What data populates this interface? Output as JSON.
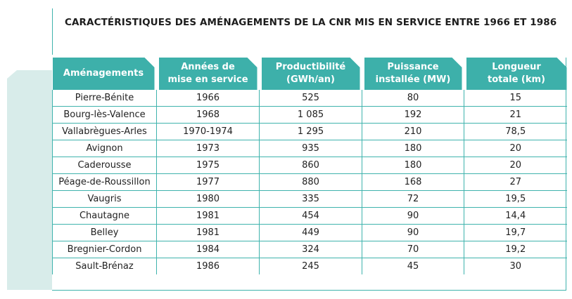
{
  "title": "CARACTÉRISTIQUES DES AMÉNAGEMENTS DE LA CNR MIS EN SERVICE ENTRE 1966 ET 1986",
  "colors": {
    "accent": "#3db0aa",
    "side_panel": "#d8ecea",
    "rule": "#3fb3ad"
  },
  "table": {
    "headers": [
      "Aménagements",
      "Années de\nmise en service",
      "Productibilité\n(GWh/an)",
      "Puissance\ninstallée (MW)",
      "Longueur\ntotale (km)"
    ],
    "rows": [
      [
        "Pierre-Bénite",
        "1966",
        "525",
        "80",
        "15"
      ],
      [
        "Bourg-lès-Valence",
        "1968",
        "1 085",
        "192",
        "21"
      ],
      [
        "Vallabrègues-Arles",
        "1970-1974",
        "1 295",
        "210",
        "78,5"
      ],
      [
        "Avignon",
        "1973",
        "935",
        "180",
        "20"
      ],
      [
        "Caderousse",
        "1975",
        "860",
        "180",
        "20"
      ],
      [
        "Péage-de-Roussillon",
        "1977",
        "880",
        "168",
        "27"
      ],
      [
        "Vaugris",
        "1980",
        "335",
        "72",
        "19,5"
      ],
      [
        "Chautagne",
        "1981",
        "454",
        "90",
        "14,4"
      ],
      [
        "Belley",
        "1981",
        "449",
        "90",
        "19,7"
      ],
      [
        "Bregnier-Cordon",
        "1984",
        "324",
        "70",
        "19,2"
      ],
      [
        "Sault-Brénaz",
        "1986",
        "245",
        "45",
        "30"
      ]
    ]
  }
}
